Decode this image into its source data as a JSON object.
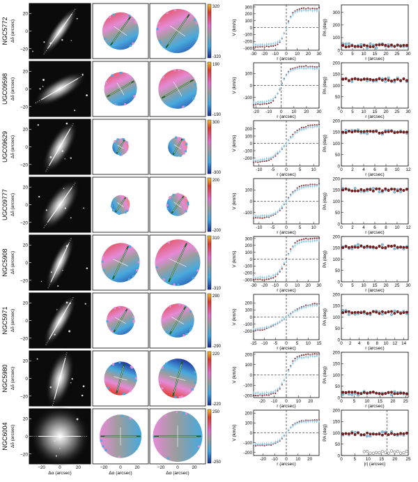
{
  "figure": {
    "description_columns": [
      "image",
      "stellar velocity field",
      "gas velocity field",
      "rotation curve",
      "position angle profile"
    ]
  },
  "galaxies": [
    {
      "name": "NGC5772",
      "vmax": "320",
      "vmin": "-320",
      "rc": {
        "xlim": [
          -30,
          30
        ],
        "xticks": [
          -30,
          -20,
          -10,
          0,
          10,
          20,
          30
        ],
        "ylim": [
          -330,
          330
        ],
        "yticks": [
          -300,
          -200,
          -100,
          0,
          100,
          200,
          300
        ],
        "vflat": 280,
        "rscale": 6
      },
      "pa": {
        "xlim": [
          0,
          30
        ],
        "xticks": [
          0,
          5,
          10,
          15,
          20,
          25,
          30
        ],
        "ylim": [
          0,
          360
        ],
        "yticks": [
          0,
          100,
          200,
          300
        ],
        "level": 35
      }
    },
    {
      "name": "UGC09598",
      "vmax": "190",
      "vmin": "-190",
      "rc": {
        "xlim": [
          -22,
          30
        ],
        "xticks": [
          -20,
          -10,
          0,
          10,
          20,
          30
        ],
        "ylim": [
          -190,
          190
        ],
        "yticks": [
          -100,
          0,
          100
        ],
        "vflat": 160,
        "rscale": 6
      },
      "pa": {
        "xlim": [
          0,
          30
        ],
        "xticks": [
          0,
          5,
          10,
          15,
          20,
          25,
          30
        ],
        "ylim": [
          0,
          200
        ],
        "yticks": [
          0,
          50,
          100,
          150,
          200
        ],
        "level": 125
      }
    },
    {
      "name": "UGC09629",
      "vmax": "300",
      "vmin": "-300",
      "rc": {
        "xlim": [
          -12,
          12
        ],
        "xticks": [
          -10,
          -5,
          0,
          5,
          10
        ],
        "ylim": [
          -310,
          310
        ],
        "yticks": [
          -200,
          -100,
          0,
          100,
          200
        ],
        "vflat": 260,
        "rscale": 5
      },
      "pa": {
        "xlim": [
          0,
          12
        ],
        "xticks": [
          0,
          2,
          4,
          6,
          8,
          10,
          12
        ],
        "ylim": [
          0,
          200
        ],
        "yticks": [
          0,
          50,
          100,
          150,
          200
        ],
        "level": 150
      }
    },
    {
      "name": "UGC09777",
      "vmax": "200",
      "vmin": "-200",
      "rc": {
        "xlim": [
          -12,
          12
        ],
        "xticks": [
          -10,
          -5,
          0,
          5,
          10
        ],
        "ylim": [
          -200,
          200
        ],
        "yticks": [
          -100,
          0,
          100
        ],
        "vflat": 150,
        "rscale": 4
      },
      "pa": {
        "xlim": [
          0,
          12
        ],
        "xticks": [
          0,
          2,
          4,
          6,
          8,
          10,
          12
        ],
        "ylim": [
          0,
          200
        ],
        "yticks": [
          0,
          50,
          100,
          150,
          200
        ],
        "level": 150
      }
    },
    {
      "name": "NGC5908",
      "vmax": "310",
      "vmin": "-310",
      "rc": {
        "xlim": [
          -30,
          30
        ],
        "xticks": [
          -30,
          -20,
          -10,
          0,
          10,
          20,
          30
        ],
        "ylim": [
          -330,
          330
        ],
        "yticks": [
          -300,
          -200,
          -100,
          0,
          100,
          200,
          300
        ],
        "vflat": 300,
        "rscale": 8
      },
      "pa": {
        "xlim": [
          0,
          30
        ],
        "xticks": [
          0,
          5,
          10,
          15,
          20,
          25,
          30
        ],
        "ylim": [
          0,
          200
        ],
        "yticks": [
          0,
          50,
          100,
          150,
          200
        ],
        "level": 155
      }
    },
    {
      "name": "NGC5971",
      "vmax": "290",
      "vmin": "-290",
      "rc": {
        "xlim": [
          -15,
          15
        ],
        "xticks": [
          -15,
          -10,
          -5,
          0,
          5,
          10,
          15
        ],
        "ylim": [
          -320,
          320
        ],
        "yticks": [
          -200,
          -100,
          0,
          100,
          200
        ],
        "vflat": 200,
        "rscale": 8
      },
      "pa": {
        "xlim": [
          0,
          15
        ],
        "xticks": [
          0,
          2,
          4,
          6,
          8,
          10,
          12,
          14
        ],
        "ylim": [
          0,
          200
        ],
        "yticks": [
          0,
          50,
          100,
          150,
          200
        ],
        "level": 120
      }
    },
    {
      "name": "NGC5980",
      "vmax": "220",
      "vmin": "-220",
      "rc": {
        "xlim": [
          -27,
          27
        ],
        "xticks": [
          -20,
          -10,
          0,
          10,
          20
        ],
        "ylim": [
          -220,
          220
        ],
        "yticks": [
          -200,
          -100,
          0,
          100,
          200
        ],
        "vflat": 200,
        "rscale": 7
      },
      "pa": {
        "xlim": [
          0,
          26
        ],
        "xticks": [
          0,
          5,
          10,
          15,
          20,
          25
        ],
        "ylim": [
          0,
          200
        ],
        "yticks": [
          0,
          50,
          100,
          150,
          200
        ],
        "level": 20
      }
    },
    {
      "name": "NGC6004",
      "vmax": "250",
      "vmin": "-250",
      "rc": {
        "xlim": [
          -28,
          28
        ],
        "xticks": [
          -20,
          -10,
          0,
          10,
          20
        ],
        "ylim": [
          -230,
          230
        ],
        "yticks": [
          -200,
          -100,
          0,
          100,
          200
        ],
        "vflat": 130,
        "rscale": 8
      },
      "pa": {
        "xlim": [
          0,
          25
        ],
        "xticks": [
          0,
          5,
          10,
          15,
          20,
          25
        ],
        "ylim": [
          0,
          200
        ],
        "yticks": [
          0,
          50,
          100,
          150,
          200
        ],
        "level": 95
      }
    }
  ],
  "image_axes": {
    "ylabel": "Δδ (arcsec)",
    "xlabel": "Δα (arcsec)",
    "ticks": [
      "20",
      "0",
      "−20"
    ],
    "xticks": [
      "−20",
      "0",
      "20"
    ]
  },
  "rc_axes": {
    "ylabel": "V (km/s)",
    "xlabel": "r (arcsec)"
  },
  "pa_axes": {
    "ylabel": "PA (deg)",
    "xlabel": "r (arcsec)",
    "xlabel_last": "|r| (arcsec)"
  },
  "colors": {
    "stars": "#8b1a1a",
    "gas": "#7fc4e8",
    "gas_open": "#6b6b6b",
    "trace": "#1b5e20",
    "cbar": [
      "#1a2a8c",
      "#3aa7e0",
      "#9a9a9a",
      "#e06ccf",
      "#d83a2a",
      "#f0c020"
    ]
  }
}
